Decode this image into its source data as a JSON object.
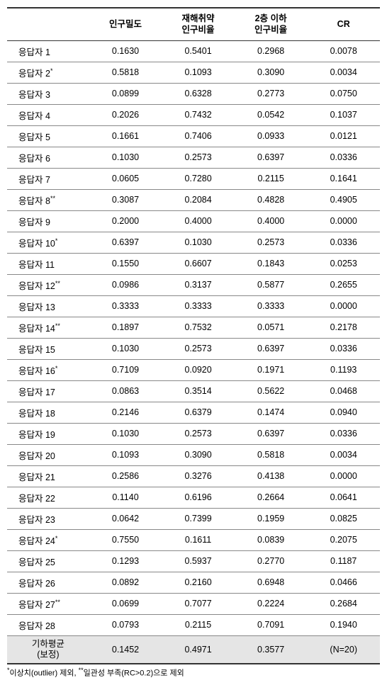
{
  "table": {
    "columns": [
      "인구밀도",
      "재해취약\n인구비율",
      "2층 이하\n인구비율",
      "CR"
    ],
    "rows": [
      {
        "label": "응답자 1",
        "sup": "",
        "v": [
          "0.1630",
          "0.5401",
          "0.2968",
          "0.0078"
        ]
      },
      {
        "label": "응답자 2",
        "sup": "*",
        "v": [
          "0.5818",
          "0.1093",
          "0.3090",
          "0.0034"
        ]
      },
      {
        "label": "응답자 3",
        "sup": "",
        "v": [
          "0.0899",
          "0.6328",
          "0.2773",
          "0.0750"
        ]
      },
      {
        "label": "응답자 4",
        "sup": "",
        "v": [
          "0.2026",
          "0.7432",
          "0.0542",
          "0.1037"
        ]
      },
      {
        "label": "응답자 5",
        "sup": "",
        "v": [
          "0.1661",
          "0.7406",
          "0.0933",
          "0.0121"
        ]
      },
      {
        "label": "응답자 6",
        "sup": "",
        "v": [
          "0.1030",
          "0.2573",
          "0.6397",
          "0.0336"
        ]
      },
      {
        "label": "응답자 7",
        "sup": "",
        "v": [
          "0.0605",
          "0.7280",
          "0.2115",
          "0.1641"
        ]
      },
      {
        "label": "응답자 8",
        "sup": "**",
        "v": [
          "0.3087",
          "0.2084",
          "0.4828",
          "0.4905"
        ]
      },
      {
        "label": "응답자 9",
        "sup": "",
        "v": [
          "0.2000",
          "0.4000",
          "0.4000",
          "0.0000"
        ]
      },
      {
        "label": "응답자 10",
        "sup": "*",
        "v": [
          "0.6397",
          "0.1030",
          "0.2573",
          "0.0336"
        ]
      },
      {
        "label": "응답자 11",
        "sup": "",
        "v": [
          "0.1550",
          "0.6607",
          "0.1843",
          "0.0253"
        ]
      },
      {
        "label": "응답자 12",
        "sup": "**",
        "v": [
          "0.0986",
          "0.3137",
          "0.5877",
          "0.2655"
        ]
      },
      {
        "label": "응답자 13",
        "sup": "",
        "v": [
          "0.3333",
          "0.3333",
          "0.3333",
          "0.0000"
        ]
      },
      {
        "label": "응답자 14",
        "sup": "**",
        "v": [
          "0.1897",
          "0.7532",
          "0.0571",
          "0.2178"
        ]
      },
      {
        "label": "응답자 15",
        "sup": "",
        "v": [
          "0.1030",
          "0.2573",
          "0.6397",
          "0.0336"
        ]
      },
      {
        "label": "응답자 16",
        "sup": "*",
        "v": [
          "0.7109",
          "0.0920",
          "0.1971",
          "0.1193"
        ]
      },
      {
        "label": "응답자 17",
        "sup": "",
        "v": [
          "0.0863",
          "0.3514",
          "0.5622",
          "0.0468"
        ]
      },
      {
        "label": "응답자 18",
        "sup": "",
        "v": [
          "0.2146",
          "0.6379",
          "0.1474",
          "0.0940"
        ]
      },
      {
        "label": "응답자 19",
        "sup": "",
        "v": [
          "0.1030",
          "0.2573",
          "0.6397",
          "0.0336"
        ]
      },
      {
        "label": "응답자 20",
        "sup": "",
        "v": [
          "0.1093",
          "0.3090",
          "0.5818",
          "0.0034"
        ]
      },
      {
        "label": "응답자 21",
        "sup": "",
        "v": [
          "0.2586",
          "0.3276",
          "0.4138",
          "0.0000"
        ]
      },
      {
        "label": "응답자 22",
        "sup": "",
        "v": [
          "0.1140",
          "0.6196",
          "0.2664",
          "0.0641"
        ]
      },
      {
        "label": "응답자 23",
        "sup": "",
        "v": [
          "0.0642",
          "0.7399",
          "0.1959",
          "0.0825"
        ]
      },
      {
        "label": "응답자 24",
        "sup": "*",
        "v": [
          "0.7550",
          "0.1611",
          "0.0839",
          "0.2075"
        ]
      },
      {
        "label": "응답자 25",
        "sup": "",
        "v": [
          "0.1293",
          "0.5937",
          "0.2770",
          "0.1187"
        ]
      },
      {
        "label": "응답자 26",
        "sup": "",
        "v": [
          "0.0892",
          "0.2160",
          "0.6948",
          "0.0466"
        ]
      },
      {
        "label": "응답자 27",
        "sup": "**",
        "v": [
          "0.0699",
          "0.7077",
          "0.2224",
          "0.2684"
        ]
      },
      {
        "label": "응답자 28",
        "sup": "",
        "v": [
          "0.0793",
          "0.2115",
          "0.7091",
          "0.1940"
        ]
      }
    ],
    "summary": {
      "label_line1": "기하평균",
      "label_line2": "(보정)",
      "v": [
        "0.1452",
        "0.4971",
        "0.3577",
        "(N=20)"
      ]
    }
  },
  "footnote": {
    "part1_sup": "*",
    "part1_text": "이상치(outlier) 제외, ",
    "part2_sup": "**",
    "part2_text": "일관성 부족(RC>0.2)으로 제외"
  },
  "style": {
    "bg": "#ffffff",
    "summary_bg": "#e5e5e5",
    "border_dark": "#333333",
    "border_light": "#888888",
    "font_size_table": 12.5,
    "font_size_footnote": 11
  }
}
